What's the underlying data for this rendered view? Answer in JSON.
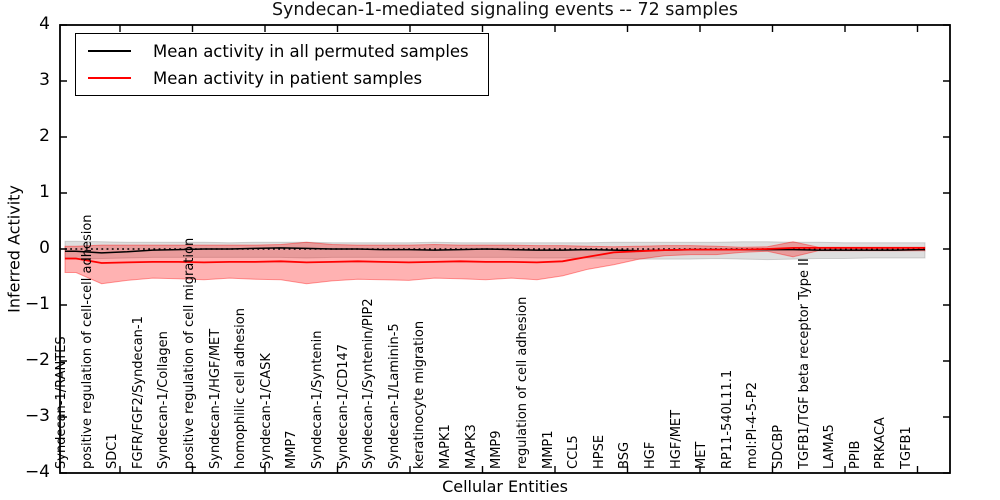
{
  "title": "Syndecan-1-mediated signaling events -- 72 samples",
  "axes": {
    "xlabel": "Cellular Entities",
    "ylabel": "Inferred Activity",
    "ytick_labels": [
      "4",
      "3",
      "2",
      "1",
      "0",
      "−1",
      "−2",
      "−3",
      "−4"
    ],
    "ytick_values": [
      4,
      3,
      2,
      1,
      0,
      -1,
      -2,
      -3,
      -4
    ]
  },
  "legend": {
    "entries": [
      {
        "label": "Mean activity in all permuted samples",
        "color": "#000000"
      },
      {
        "label": "Mean activity in patient samples",
        "color": "#ff0000"
      }
    ]
  },
  "colors": {
    "permuted_line": "#000000",
    "patient_line": "#ff0000",
    "permuted_band": "rgba(0,0,0,0.13)",
    "patient_band": "rgba(255,0,0,0.30)",
    "patient_band_edge": "rgba(255,0,0,0.38)",
    "frame": "#000000"
  },
  "chart_data": {
    "type": "line",
    "title": "Syndecan-1-mediated signaling events -- 72 samples",
    "xlabel": "Cellular Entities",
    "ylabel": "Inferred Activity",
    "ylim": [
      -4,
      4
    ],
    "grid": false,
    "legend_position": "upper left",
    "zero_reference_line": {
      "y": 0,
      "style": "dashed",
      "color": "#000000"
    },
    "categories": [
      "Syndecan-1/RANTES",
      "positive regulation of cell-cell adhesion",
      "SDC1",
      "FGFR/FGF2/Syndecan-1",
      "Syndecan-1/Collagen",
      "positive regulation of cell migration",
      "Syndecan-1/HGF/MET",
      "homophilic cell adhesion",
      "Syndecan-1/CASK",
      "MMP7",
      "Syndecan-1/Syntenin",
      "Syndecan-1/CD147",
      "Syndecan-1/Syntenin/PIP2",
      "Syndecan-1/Laminin-5",
      "keratinocyte migration",
      "MAPK1",
      "MAPK3",
      "MMP9",
      "regulation of cell adhesion",
      "MMP1",
      "CCL5",
      "HPSE",
      "BSG",
      "HGF",
      "HGF/MET",
      "MET",
      "RP11-540L11.1",
      "mol:PI-4-5-P2",
      "SDCBP",
      "TGFB1/TGF beta receptor Type II",
      "LAMA5",
      "PPIB",
      "PRKACA",
      "TGFB1"
    ],
    "series": [
      {
        "name": "Mean activity in all permuted samples",
        "color": "#000000",
        "values": [
          -0.04,
          -0.07,
          -0.05,
          -0.02,
          -0.01,
          0,
          0,
          0.01,
          0.02,
          0.01,
          0,
          0,
          -0.01,
          -0.01,
          -0.02,
          -0.01,
          0,
          -0.01,
          -0.02,
          -0.02,
          -0.01,
          -0.02,
          -0.03,
          -0.02,
          -0.01,
          -0.01,
          -0.01,
          -0.01,
          -0.01,
          -0.02,
          -0.02,
          -0.02,
          -0.02,
          -0.01
        ]
      },
      {
        "name": "Mean activity in patient samples",
        "color": "#ff0000",
        "values": [
          -0.17,
          -0.25,
          -0.24,
          -0.23,
          -0.23,
          -0.24,
          -0.23,
          -0.23,
          -0.22,
          -0.24,
          -0.23,
          -0.22,
          -0.23,
          -0.24,
          -0.23,
          -0.22,
          -0.23,
          -0.23,
          -0.24,
          -0.22,
          -0.14,
          -0.06,
          -0.04,
          -0.02,
          -0.01,
          -0.01,
          -0.01,
          0,
          0.02,
          0.02,
          0.02,
          0.02,
          0.02,
          0.02
        ]
      }
    ],
    "bands": [
      {
        "name": "permuted samples activity range",
        "upper": [
          0.14,
          0.13,
          0.12,
          0.12,
          0.12,
          0.12,
          0.11,
          0.12,
          0.12,
          0.12,
          0.11,
          0.11,
          0.11,
          0.11,
          0.12,
          0.11,
          0.11,
          0.11,
          0.11,
          0.11,
          0.11,
          0.12,
          0.12,
          0.12,
          0.12,
          0.12,
          0.13,
          0.13,
          0.12,
          0.12,
          0.11,
          0.11,
          0.11,
          0.11
        ],
        "lower": [
          -0.18,
          -0.17,
          -0.16,
          -0.15,
          -0.15,
          -0.15,
          -0.15,
          -0.15,
          -0.15,
          -0.16,
          -0.15,
          -0.15,
          -0.15,
          -0.15,
          -0.15,
          -0.15,
          -0.15,
          -0.15,
          -0.16,
          -0.16,
          -0.16,
          -0.17,
          -0.18,
          -0.18,
          -0.18,
          -0.17,
          -0.18,
          -0.19,
          -0.18,
          -0.17,
          -0.17,
          -0.16,
          -0.16,
          -0.16
        ]
      },
      {
        "name": "patient samples activity range",
        "upper": [
          0.05,
          0.07,
          0.07,
          0.07,
          0.07,
          0.07,
          0.07,
          0.07,
          0.08,
          0.12,
          0.08,
          0.07,
          0.07,
          0.07,
          0.08,
          0.07,
          0.07,
          0.07,
          0.06,
          0.06,
          0.05,
          0.04,
          0.05,
          0.06,
          0.06,
          0.05,
          0.03,
          0.04,
          0.13,
          0.03,
          0.03,
          0.03,
          0.03,
          0.03
        ],
        "lower": [
          -0.42,
          -0.62,
          -0.56,
          -0.52,
          -0.53,
          -0.55,
          -0.52,
          -0.54,
          -0.55,
          -0.62,
          -0.57,
          -0.54,
          -0.55,
          -0.56,
          -0.52,
          -0.53,
          -0.55,
          -0.52,
          -0.55,
          -0.48,
          -0.36,
          -0.28,
          -0.18,
          -0.12,
          -0.1,
          -0.1,
          -0.06,
          -0.04,
          -0.14,
          -0.03,
          -0.03,
          -0.03,
          -0.03,
          -0.03
        ]
      }
    ]
  }
}
